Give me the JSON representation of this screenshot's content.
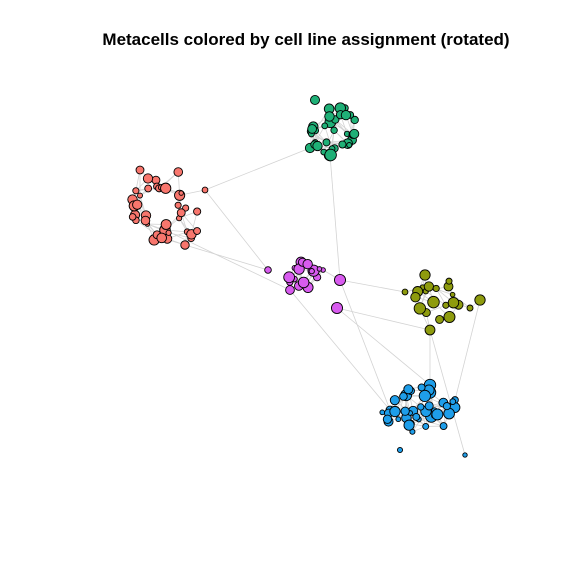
{
  "title": "Metacells colored by cell line assignment (rotated)",
  "colors": {
    "red": "#F8766D",
    "green": "#1FB077",
    "magenta": "#D85BEF",
    "olive": "#8E9B0E",
    "blue": "#1E9EEA",
    "edge": "#D3D3D3",
    "node_stroke": "#000000"
  },
  "chart_data": {
    "type": "network",
    "title": "Metacells colored by cell line assignment (rotated)",
    "clusters": [
      {
        "color_key": "green",
        "node_count": 35
      },
      {
        "color_key": "red",
        "node_count": 40
      },
      {
        "color_key": "magenta",
        "node_count": 20
      },
      {
        "color_key": "olive",
        "node_count": 22
      },
      {
        "color_key": "blue",
        "node_count": 45
      }
    ],
    "grid": false,
    "axes": false,
    "legend": "none"
  }
}
